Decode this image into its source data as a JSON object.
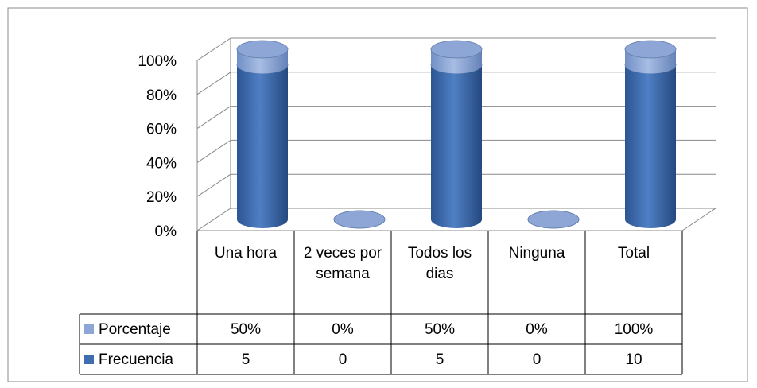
{
  "chart_data": {
    "type": "bar3d_cylinder_stacked100",
    "categories": [
      "Una hora",
      "2 veces por semana",
      "Todos los dias",
      "Ninguna",
      "Total"
    ],
    "series": [
      {
        "name": "Frecuencia",
        "color": "#3f6db0",
        "values": [
          5,
          0,
          5,
          0,
          10
        ]
      },
      {
        "name": "Porcentaje",
        "color": "#8ea6d6",
        "values": [
          0.5,
          0,
          0.5,
          0,
          1
        ],
        "value_labels": [
          "50%",
          "0%",
          "50%",
          "0%",
          "100%"
        ]
      }
    ],
    "ylim": [
      0,
      100
    ],
    "yticks": [
      {
        "value": 0,
        "label": "0%"
      },
      {
        "value": 20,
        "label": "20%"
      },
      {
        "value": 40,
        "label": "40%"
      },
      {
        "value": 60,
        "label": "60%"
      },
      {
        "value": 80,
        "label": "80%"
      },
      {
        "value": 100,
        "label": "100%"
      }
    ],
    "grid": true
  }
}
